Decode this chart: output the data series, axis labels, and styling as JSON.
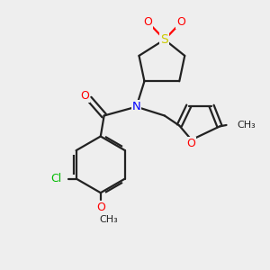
{
  "background_color": "#eeeeee",
  "bond_color": "#222222",
  "S_color": "#cccc00",
  "O_color": "#ff0000",
  "N_color": "#0000ff",
  "Cl_color": "#00bb00",
  "figsize": [
    3.0,
    3.0
  ],
  "dpi": 100,
  "xlim": [
    0,
    10
  ],
  "ylim": [
    0,
    10
  ]
}
